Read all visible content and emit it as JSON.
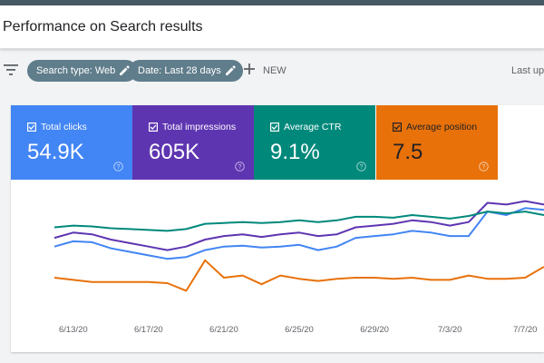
{
  "header": {
    "title": "Performance on Search results"
  },
  "filters": {
    "chips": [
      {
        "label": "Search type: Web"
      },
      {
        "label": "Date: Last 28 days"
      }
    ],
    "new_label": "NEW",
    "last_updated": "Last up"
  },
  "metrics": [
    {
      "label": "Total clicks",
      "value": "54.9K",
      "color": "#4285f4",
      "checked": true
    },
    {
      "label": "Total impressions",
      "value": "605K",
      "color": "#5e35b1",
      "checked": true
    },
    {
      "label": "Average CTR",
      "value": "9.1%",
      "color": "#00897b",
      "checked": true
    },
    {
      "label": "Average position",
      "value": "7.5",
      "color": "#e8710a",
      "checked": true
    }
  ],
  "icons": {
    "filter": "filter-icon",
    "edit": "pencil-icon",
    "add": "plus-icon",
    "checkbox": "checkbox-checked-icon",
    "help": "help-circle-icon"
  },
  "chart_data": {
    "type": "line",
    "x_tick_labels": [
      "6/13/20",
      "6/17/20",
      "6/21/20",
      "6/25/20",
      "6/29/20",
      "7/3/20",
      "7/7/20"
    ],
    "x": [
      "6/12/20",
      "6/13/20",
      "6/14/20",
      "6/15/20",
      "6/16/20",
      "6/17/20",
      "6/18/20",
      "6/19/20",
      "6/20/20",
      "6/21/20",
      "6/22/20",
      "6/23/20",
      "6/24/20",
      "6/25/20",
      "6/26/20",
      "6/27/20",
      "6/28/20",
      "6/29/20",
      "6/30/20",
      "7/1/20",
      "7/2/20",
      "7/3/20",
      "7/4/20",
      "7/5/20",
      "7/6/20",
      "7/7/20",
      "7/8/20"
    ],
    "grid": false,
    "legend": "none",
    "y_axis": "hidden (relative scale)",
    "series": [
      {
        "metric": "Total clicks",
        "color": "#4285f4",
        "values": [
          38,
          41,
          40.5,
          37,
          35,
          33,
          31,
          32,
          36,
          38,
          38.5,
          37.5,
          38,
          39,
          36,
          38,
          43,
          44,
          45,
          47,
          46,
          44,
          44,
          58,
          56,
          60,
          59
        ]
      },
      {
        "metric": "Total impressions",
        "color": "#5e35b1",
        "values": [
          43,
          46,
          45,
          42,
          40,
          38,
          36,
          38,
          42,
          44,
          45,
          43.5,
          45,
          46,
          44,
          45,
          49,
          50,
          51,
          53,
          52,
          50,
          52,
          63,
          62,
          64,
          62
        ]
      },
      {
        "metric": "Average CTR",
        "color": "#00897b",
        "values": [
          49,
          50,
          49.5,
          48.5,
          48,
          47.5,
          47,
          48,
          51,
          51.5,
          52,
          51.5,
          52,
          53,
          52,
          53,
          55,
          55,
          54.5,
          56,
          55,
          54,
          55.5,
          58,
          57,
          58,
          56
        ]
      },
      {
        "metric": "Average position",
        "color": "#e8710a",
        "values": [
          8,
          7.8,
          7.6,
          7.6,
          7.6,
          7.6,
          7.5,
          6.8,
          9.6,
          8,
          8.2,
          7.4,
          8.2,
          7.9,
          7.7,
          7.9,
          8,
          8,
          7.9,
          8,
          7.8,
          7.8,
          8.2,
          7.9,
          7.9,
          8,
          9
        ]
      }
    ]
  }
}
